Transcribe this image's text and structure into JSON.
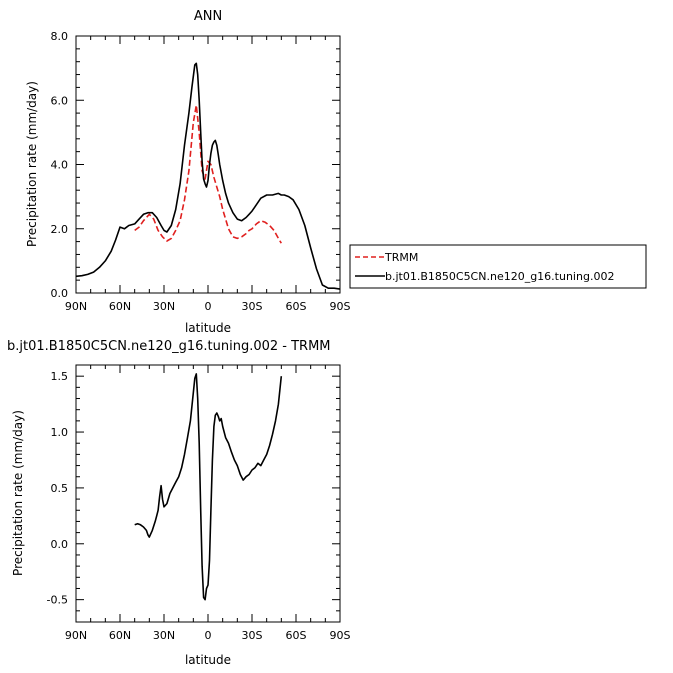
{
  "chart_data": [
    {
      "type": "line",
      "title": "ANN",
      "xlabel": "latitude",
      "ylabel": "Precipitation rate (mm/day)",
      "xlim": [
        90,
        -90
      ],
      "ylim": [
        0,
        8
      ],
      "x_ticks": [
        90,
        60,
        30,
        0,
        -30,
        -60,
        -90
      ],
      "x_tick_labels": [
        "90N",
        "60N",
        "30N",
        "0",
        "30S",
        "60S",
        "90S"
      ],
      "y_ticks": [
        0,
        2,
        4,
        6,
        8
      ],
      "y_tick_labels": [
        "0.0",
        "2.0",
        "4.0",
        "6.0",
        "8.0"
      ],
      "legend_position": "right",
      "series": [
        {
          "name": "TRMM",
          "color": "#e0201f",
          "dash": true,
          "x": [
            50,
            47,
            44,
            40,
            37,
            34,
            31,
            28,
            25,
            22,
            19,
            16,
            13,
            10,
            8,
            6,
            4,
            2,
            0,
            -2,
            -4,
            -6,
            -8,
            -10,
            -12,
            -14,
            -17,
            -20,
            -23,
            -26,
            -28,
            -30,
            -33,
            -36,
            -39,
            -42,
            -45,
            -48,
            -50
          ],
          "y": [
            1.95,
            2.05,
            2.25,
            2.45,
            2.3,
            1.95,
            1.75,
            1.62,
            1.7,
            1.95,
            2.25,
            2.9,
            3.8,
            5.3,
            5.85,
            5.0,
            3.8,
            3.55,
            4.1,
            4.0,
            3.6,
            3.3,
            3.0,
            2.6,
            2.3,
            2.0,
            1.75,
            1.7,
            1.75,
            1.85,
            1.95,
            2.0,
            2.15,
            2.25,
            2.2,
            2.1,
            1.95,
            1.7,
            1.55
          ]
        },
        {
          "name": "b.jt01.B1850C5CN.ne120_g16.tuning.002",
          "color": "#000000",
          "dash": false,
          "x": [
            90,
            86,
            82,
            78,
            74,
            70,
            66,
            63,
            60,
            57,
            54,
            50,
            47,
            44,
            41,
            38,
            35,
            32,
            30,
            28,
            25,
            22,
            19,
            16,
            13,
            11,
            9,
            8,
            7,
            6,
            5,
            4,
            3,
            2,
            1,
            0,
            -1,
            -2,
            -3,
            -4,
            -5,
            -6,
            -7,
            -8,
            -10,
            -12,
            -14,
            -17,
            -20,
            -23,
            -26,
            -28,
            -30,
            -33,
            -36,
            -40,
            -44,
            -48,
            -50,
            -52,
            -55,
            -58,
            -62,
            -66,
            -70,
            -74,
            -78,
            -82,
            -86,
            -90
          ],
          "y": [
            0.52,
            0.54,
            0.58,
            0.65,
            0.8,
            1.0,
            1.3,
            1.65,
            2.05,
            2.0,
            2.1,
            2.15,
            2.3,
            2.45,
            2.5,
            2.5,
            2.35,
            2.1,
            1.95,
            1.9,
            2.1,
            2.6,
            3.4,
            4.6,
            5.6,
            6.4,
            7.1,
            7.15,
            6.8,
            6.0,
            5.0,
            4.1,
            3.55,
            3.4,
            3.3,
            3.5,
            4.0,
            4.35,
            4.6,
            4.7,
            4.75,
            4.6,
            4.3,
            4.0,
            3.5,
            3.1,
            2.8,
            2.5,
            2.3,
            2.25,
            2.35,
            2.45,
            2.55,
            2.75,
            2.95,
            3.05,
            3.05,
            3.1,
            3.05,
            3.05,
            3.0,
            2.9,
            2.6,
            2.1,
            1.4,
            0.75,
            0.25,
            0.15,
            0.15,
            0.12
          ]
        }
      ]
    },
    {
      "type": "line",
      "title": "b.jt01.B1850C5CN.ne120_g16.tuning.002 - TRMM",
      "xlabel": "latitude",
      "ylabel": "Precipitation rate (mm/day)",
      "xlim": [
        90,
        -90
      ],
      "ylim": [
        -0.7,
        1.6
      ],
      "x_ticks": [
        90,
        60,
        30,
        0,
        -30,
        -60,
        -90
      ],
      "x_tick_labels": [
        "90N",
        "60N",
        "30N",
        "0",
        "30S",
        "60S",
        "90S"
      ],
      "y_ticks": [
        -0.5,
        0,
        0.5,
        1,
        1.5
      ],
      "y_tick_labels": [
        "-0.5",
        "0.0",
        "0.5",
        "1.0",
        "1.5"
      ],
      "series": [
        {
          "color": "#000000",
          "x": [
            50,
            48,
            46,
            44,
            42,
            41,
            40,
            38,
            36,
            35,
            34,
            33,
            32,
            31,
            30,
            28,
            26,
            24,
            22,
            20,
            18,
            16,
            14,
            12,
            10,
            9,
            8,
            7,
            6,
            5,
            4,
            3,
            2,
            1,
            0,
            -1,
            -2,
            -3,
            -4,
            -5,
            -6,
            -7,
            -8,
            -9,
            -10,
            -12,
            -14,
            -16,
            -18,
            -20,
            -22,
            -24,
            -26,
            -28,
            -30,
            -32,
            -34,
            -36,
            -38,
            -40,
            -42,
            -44,
            -46,
            -48,
            -50
          ],
          "y": [
            0.17,
            0.18,
            0.17,
            0.15,
            0.12,
            0.08,
            0.06,
            0.12,
            0.2,
            0.25,
            0.3,
            0.42,
            0.52,
            0.4,
            0.33,
            0.36,
            0.45,
            0.5,
            0.55,
            0.6,
            0.68,
            0.8,
            0.95,
            1.1,
            1.35,
            1.48,
            1.52,
            1.3,
            0.9,
            0.3,
            -0.2,
            -0.48,
            -0.5,
            -0.4,
            -0.37,
            -0.15,
            0.3,
            0.75,
            1.05,
            1.15,
            1.17,
            1.14,
            1.1,
            1.12,
            1.05,
            0.95,
            0.9,
            0.82,
            0.75,
            0.7,
            0.62,
            0.57,
            0.6,
            0.62,
            0.66,
            0.68,
            0.72,
            0.7,
            0.75,
            0.8,
            0.88,
            0.98,
            1.1,
            1.25,
            1.5
          ]
        }
      ]
    }
  ]
}
